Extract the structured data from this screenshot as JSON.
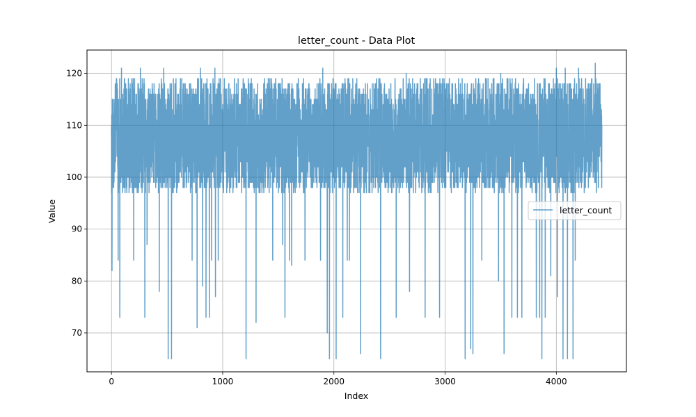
{
  "chart_data": {
    "type": "line",
    "title": "letter_count - Data Plot",
    "xlabel": "Index",
    "ylabel": "Value",
    "xlim": [
      -220,
      4630
    ],
    "ylim": [
      62.5,
      124.5
    ],
    "xticks": [
      0,
      1000,
      2000,
      3000,
      4000
    ],
    "yticks": [
      70,
      80,
      90,
      100,
      110,
      120
    ],
    "grid": true,
    "legend_position": "center-right",
    "n_points": 4410,
    "series": [
      {
        "name": "letter_count",
        "color": "#1f77b4",
        "opacity": 0.7,
        "band_low": 97,
        "band_high": 119,
        "dense_low": 99,
        "dense_high": 116,
        "peaks": [
          [
            90,
            121
          ],
          [
            260,
            121
          ],
          [
            300,
            121
          ],
          [
            470,
            121
          ],
          [
            800,
            121
          ],
          [
            930,
            121
          ],
          [
            1230,
            119
          ],
          [
            1410,
            119
          ],
          [
            1560,
            119
          ],
          [
            1680,
            119
          ],
          [
            1900,
            121
          ],
          [
            2100,
            119
          ],
          [
            2550,
            119
          ],
          [
            2650,
            120
          ],
          [
            2950,
            121
          ],
          [
            3180,
            120
          ],
          [
            3250,
            122
          ],
          [
            3500,
            120
          ],
          [
            3600,
            120
          ],
          [
            3850,
            121
          ],
          [
            4000,
            121
          ],
          [
            4080,
            121
          ],
          [
            4200,
            121
          ],
          [
            4350,
            122
          ]
        ],
        "dips": [
          [
            5,
            82
          ],
          [
            60,
            84
          ],
          [
            75,
            73
          ],
          [
            200,
            84
          ],
          [
            300,
            73
          ],
          [
            320,
            87
          ],
          [
            430,
            78
          ],
          [
            510,
            65
          ],
          [
            540,
            65
          ],
          [
            725,
            84
          ],
          [
            770,
            71
          ],
          [
            820,
            79
          ],
          [
            850,
            73
          ],
          [
            880,
            73
          ],
          [
            900,
            84
          ],
          [
            935,
            77
          ],
          [
            960,
            84
          ],
          [
            1210,
            65
          ],
          [
            1300,
            72
          ],
          [
            1450,
            84
          ],
          [
            1540,
            87
          ],
          [
            1560,
            73
          ],
          [
            1600,
            84
          ],
          [
            1620,
            83
          ],
          [
            1740,
            84
          ],
          [
            1880,
            84
          ],
          [
            1940,
            70
          ],
          [
            1960,
            65
          ],
          [
            2020,
            65
          ],
          [
            2080,
            73
          ],
          [
            2120,
            84
          ],
          [
            2140,
            84
          ],
          [
            2240,
            66
          ],
          [
            2420,
            65
          ],
          [
            2560,
            73
          ],
          [
            2680,
            78
          ],
          [
            2820,
            73
          ],
          [
            2950,
            73
          ],
          [
            3180,
            65
          ],
          [
            3230,
            67
          ],
          [
            3250,
            66
          ],
          [
            3330,
            84
          ],
          [
            3480,
            80
          ],
          [
            3530,
            66
          ],
          [
            3600,
            73
          ],
          [
            3650,
            73
          ],
          [
            3690,
            73
          ],
          [
            3820,
            73
          ],
          [
            3850,
            73
          ],
          [
            3870,
            65
          ],
          [
            3900,
            73
          ],
          [
            3950,
            81
          ],
          [
            4010,
            77
          ],
          [
            4060,
            65
          ],
          [
            4100,
            65
          ],
          [
            4150,
            65
          ],
          [
            4170,
            84
          ]
        ]
      }
    ]
  }
}
